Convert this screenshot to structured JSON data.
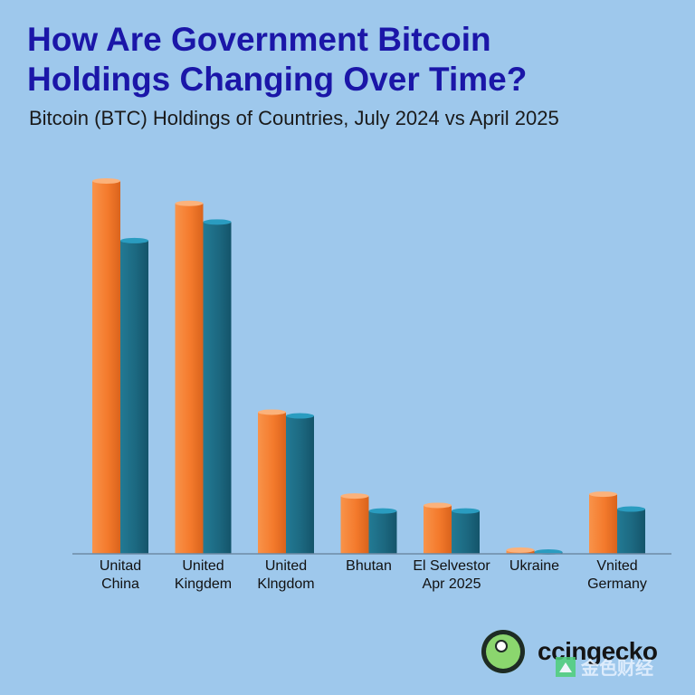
{
  "header": {
    "title_line1": "How Are Government Bitcoin",
    "title_line2": "Holdings Changing Over Time?",
    "subtitle": "Bitcoin (BTC) Holdings of Countries, July 2024 vs April 2025"
  },
  "brand": {
    "logo_text": "ccingecko",
    "logo_icon": "gecko-icon",
    "watermark_text": "金色财经",
    "watermark_icon": "triangle-icon"
  },
  "colors": {
    "background": "#9ec8ec",
    "series_july_2024": "#f47a2c",
    "series_april_2025": "#1c6880",
    "title": "#1b16a8"
  },
  "chart_data": {
    "type": "bar",
    "title": "",
    "xlabel": "",
    "ylabel": "",
    "ylim": [
      0,
      100
    ],
    "grid": false,
    "legend": "none",
    "categories": [
      [
        "Unitad",
        "China"
      ],
      [
        "United",
        "Kingdem"
      ],
      [
        "United",
        "Klngdom"
      ],
      [
        "Bhutan"
      ],
      [
        "El Selvestor",
        "Apr 2025"
      ],
      [
        "Ukraine"
      ],
      [
        "Vnited",
        "Germany"
      ]
    ],
    "series": [
      {
        "values": [
          100,
          94,
          38,
          15.5,
          13,
          1,
          16
        ]
      },
      {
        "values": [
          84,
          89,
          37,
          11.5,
          11.5,
          0.4,
          12
        ]
      }
    ]
  }
}
